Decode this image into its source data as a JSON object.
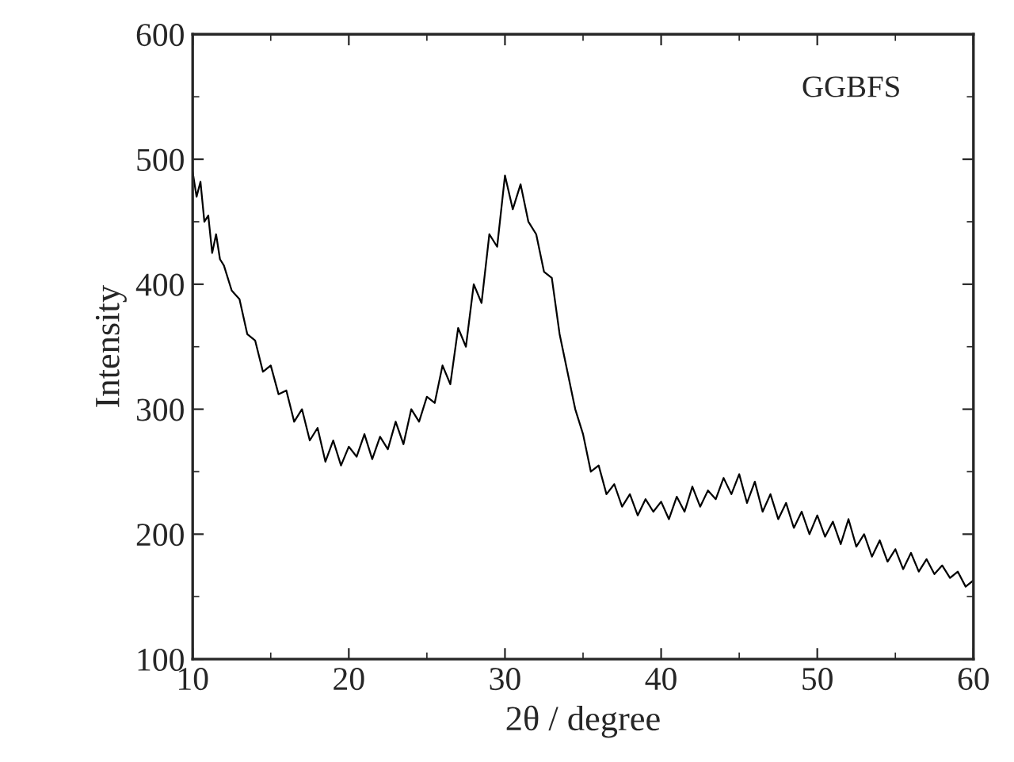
{
  "chart_data": {
    "type": "line",
    "xlabel": "2θ / degree",
    "ylabel": "Intensity",
    "annotations": [
      "GGBFS"
    ],
    "xlim": [
      10,
      60
    ],
    "xticks": [
      10,
      20,
      30,
      40,
      50,
      60
    ],
    "ylim": [
      100,
      600
    ],
    "yticks": [
      100,
      200,
      300,
      400,
      500,
      600
    ],
    "grid": false,
    "legend": false,
    "marker": "none",
    "line_style": "solid",
    "series": [
      {
        "color": "#000000",
        "x": [
          10,
          10.25,
          10.5,
          10.75,
          11,
          11.25,
          11.5,
          11.75,
          12,
          12.5,
          13,
          13.5,
          14,
          14.5,
          15,
          15.5,
          16,
          16.5,
          17,
          17.5,
          18,
          18.5,
          19,
          19.5,
          20,
          20.5,
          21,
          21.5,
          22,
          22.5,
          23,
          23.5,
          24,
          24.5,
          25,
          25.5,
          26,
          26.5,
          27,
          27.5,
          28,
          28.5,
          29,
          29.5,
          30,
          30.5,
          31,
          31.5,
          32,
          32.5,
          33,
          33.5,
          34,
          34.5,
          35,
          35.5,
          36,
          36.5,
          37,
          37.5,
          38,
          38.5,
          39,
          39.5,
          40,
          40.5,
          41,
          41.5,
          42,
          42.5,
          43,
          43.5,
          44,
          44.5,
          45,
          45.5,
          46,
          46.5,
          47,
          47.5,
          48,
          48.5,
          49,
          49.5,
          50,
          50.5,
          51,
          51.5,
          52,
          52.5,
          53,
          53.5,
          54,
          54.5,
          55,
          55.5,
          56,
          56.5,
          57,
          57.5,
          58,
          58.5,
          59,
          59.5,
          60
        ],
        "values": [
          490,
          470,
          482,
          450,
          455,
          425,
          440,
          420,
          415,
          395,
          388,
          360,
          355,
          330,
          335,
          312,
          315,
          290,
          300,
          275,
          285,
          258,
          275,
          255,
          270,
          262,
          280,
          260,
          278,
          268,
          290,
          272,
          300,
          290,
          310,
          305,
          335,
          320,
          365,
          350,
          400,
          385,
          440,
          430,
          487,
          460,
          480,
          450,
          440,
          410,
          405,
          360,
          330,
          300,
          280,
          250,
          255,
          232,
          240,
          222,
          232,
          215,
          228,
          218,
          226,
          212,
          230,
          218,
          238,
          222,
          235,
          228,
          245,
          232,
          248,
          225,
          242,
          218,
          232,
          212,
          225,
          205,
          218,
          200,
          215,
          198,
          210,
          192,
          212,
          190,
          200,
          182,
          195,
          178,
          188,
          172,
          185,
          170,
          180,
          168,
          175,
          165,
          170,
          158,
          163
        ]
      }
    ]
  }
}
